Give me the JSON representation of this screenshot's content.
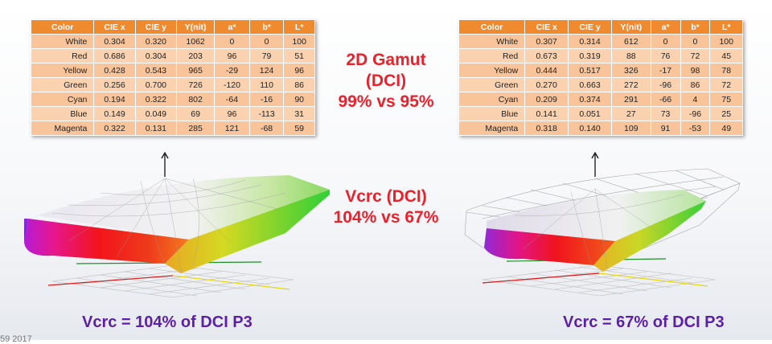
{
  "table_headers": [
    "Color",
    "CIE x",
    "CIE y",
    "Y(nit)",
    "a*",
    "b*",
    "L*"
  ],
  "left_table": [
    [
      "White",
      "0.304",
      "0.320",
      "1062",
      "0",
      "0",
      "100"
    ],
    [
      "Red",
      "0.686",
      "0.304",
      "203",
      "96",
      "79",
      "51"
    ],
    [
      "Yellow",
      "0.428",
      "0.543",
      "965",
      "-29",
      "124",
      "96"
    ],
    [
      "Green",
      "0.256",
      "0.700",
      "726",
      "-120",
      "110",
      "86"
    ],
    [
      "Cyan",
      "0.194",
      "0.322",
      "802",
      "-64",
      "-16",
      "90"
    ],
    [
      "Blue",
      "0.149",
      "0.049",
      "69",
      "96",
      "-113",
      "31"
    ],
    [
      "Magenta",
      "0.322",
      "0.131",
      "285",
      "121",
      "-68",
      "59"
    ]
  ],
  "right_table": [
    [
      "White",
      "0.307",
      "0.314",
      "612",
      "0",
      "0",
      "100"
    ],
    [
      "Red",
      "0.673",
      "0.319",
      "88",
      "76",
      "72",
      "45"
    ],
    [
      "Yellow",
      "0.444",
      "0.517",
      "326",
      "-17",
      "98",
      "78"
    ],
    [
      "Green",
      "0.270",
      "0.663",
      "272",
      "-96",
      "86",
      "72"
    ],
    [
      "Cyan",
      "0.209",
      "0.374",
      "291",
      "-66",
      "4",
      "75"
    ],
    [
      "Blue",
      "0.141",
      "0.051",
      "27",
      "73",
      "-96",
      "25"
    ],
    [
      "Magenta",
      "0.318",
      "0.140",
      "109",
      "91",
      "-53",
      "49"
    ]
  ],
  "gamut_2d": {
    "title": "2D Gamut (DCI)",
    "value": "99% vs 95%"
  },
  "volume": {
    "title": "Vcrc (DCI)",
    "value": "104% vs 67%"
  },
  "captions": {
    "left": "Vcrc = 104% of DCI P3",
    "right": "Vcrc = 67% of DCI P3"
  },
  "footnote": "59 2017",
  "colors": {
    "header_orange": "#f08a2e",
    "row_peach": "#fbd2b0",
    "stat_red": "#e8212b",
    "caption_purple": "#5b1fa8"
  }
}
